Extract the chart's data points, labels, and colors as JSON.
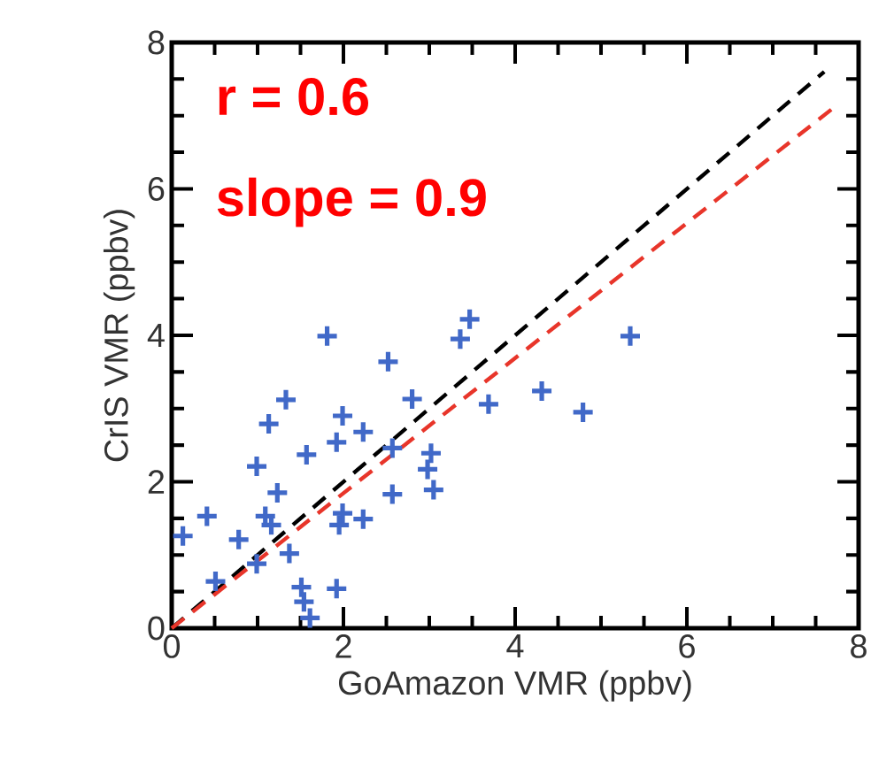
{
  "chart_data": {
    "type": "scatter",
    "xlabel": "GoAmazon VMR (ppbv)",
    "ylabel": "CrIS VMR (ppbv)",
    "annotations": [
      "r = 0.6",
      "slope = 0.9"
    ],
    "xlim": [
      0,
      8
    ],
    "ylim": [
      0,
      8
    ],
    "xticks": [
      0,
      2,
      4,
      6,
      8
    ],
    "yticks": [
      0,
      2,
      4,
      6,
      8
    ],
    "grid": false,
    "marker": "cross",
    "series": [
      {
        "color": "#4169c8",
        "x": [
          1.81,
          1.33,
          1.13,
          2.52,
          2.8,
          1.99,
          2.23,
          1.92,
          1.57,
          0.99,
          2.57,
          3.02,
          2.98,
          3.05,
          1.23,
          1.09,
          1.16,
          1.99,
          1.95,
          2.23,
          2.57,
          0.41,
          0.13,
          0.78,
          1.37,
          0.99,
          0.51,
          1.51,
          1.92,
          1.54,
          1.61,
          3.47,
          3.36,
          5.34,
          3.69,
          4.31,
          4.79
        ],
        "values": [
          3.99,
          3.12,
          2.79,
          3.64,
          3.13,
          2.9,
          2.68,
          2.54,
          2.37,
          2.21,
          2.46,
          2.39,
          2.17,
          1.89,
          1.85,
          1.53,
          1.41,
          1.57,
          1.41,
          1.49,
          1.83,
          1.53,
          1.26,
          1.21,
          1.02,
          0.88,
          0.64,
          0.56,
          0.54,
          0.36,
          0.14,
          4.22,
          3.95,
          3.99,
          3.06,
          3.24,
          2.95
        ]
      },
      {
        "type": "line",
        "color": "#000000",
        "line_style": "dashed",
        "marker": "none",
        "x": [
          0,
          7.6
        ],
        "values": [
          0,
          7.6
        ]
      },
      {
        "type": "line",
        "color": "#e8352a",
        "line_style": "dashed",
        "marker": "none",
        "x": [
          0,
          7.7
        ],
        "values": [
          0,
          7.1
        ]
      }
    ]
  }
}
